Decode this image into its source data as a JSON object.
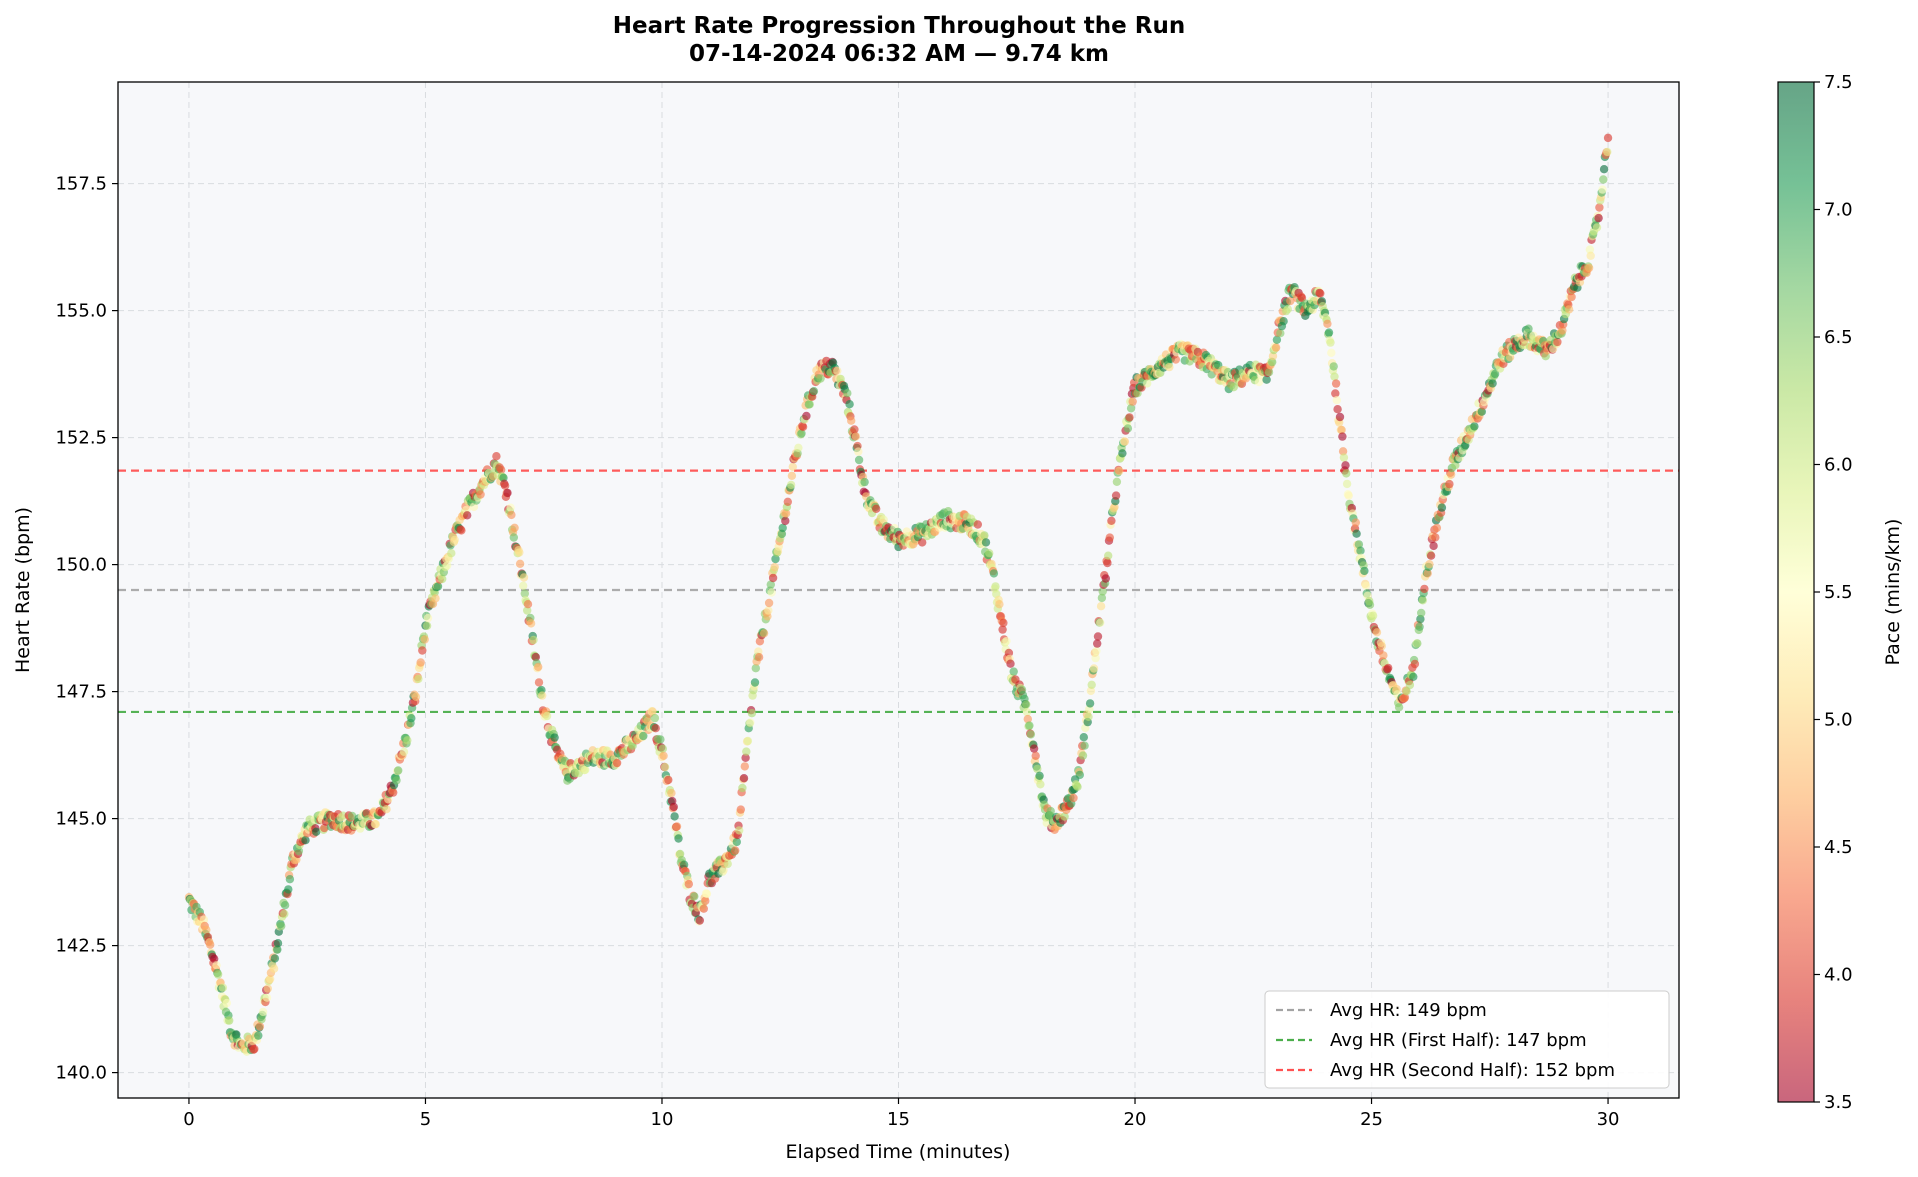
{
  "chart_data": {
    "type": "scatter",
    "title": "Heart Rate Progression Throughout the Run",
    "subtitle": "07-14-2024 06:32 AM — 9.74 km",
    "xlabel": "Elapsed Time (minutes)",
    "ylabel": "Heart Rate (bpm)",
    "xlim": [
      -1.5,
      31.5
    ],
    "ylim": [
      139.5,
      159.5
    ],
    "xticks": [
      0,
      5,
      10,
      15,
      20,
      25,
      30
    ],
    "xtick_labels": [
      "0",
      "5",
      "10",
      "15",
      "20",
      "25",
      "30"
    ],
    "yticks": [
      140.0,
      142.5,
      145.0,
      147.5,
      150.0,
      152.5,
      155.0,
      157.5
    ],
    "ytick_labels": [
      "140.0",
      "142.5",
      "145.0",
      "147.5",
      "150.0",
      "152.5",
      "155.0",
      "157.5"
    ],
    "grid": true,
    "legend_position": "lower-right",
    "colormap": "RdYlGn",
    "colorbar": {
      "label": "Pace (mins/km)",
      "range": [
        3.5,
        7.5
      ],
      "ticks": [
        3.5,
        4.0,
        4.5,
        5.0,
        5.5,
        6.0,
        6.5,
        7.0,
        7.5
      ],
      "tick_labels": [
        "3.5",
        "4.0",
        "4.5",
        "5.0",
        "5.5",
        "6.0",
        "6.5",
        "7.0",
        "7.5"
      ]
    },
    "reference_lines": [
      {
        "name": "Avg HR: 149 bpm",
        "y": 149.5,
        "color": "#999999"
      },
      {
        "name": "Avg HR (First Half): 147 bpm",
        "y": 147.1,
        "color": "#2ca02c"
      },
      {
        "name": "Avg HR (Second Half): 152 bpm",
        "y": 151.85,
        "color": "#ff3333"
      }
    ],
    "series": [
      {
        "trend": [
          [
            0.0,
            143.4
          ],
          [
            0.3,
            142.9
          ],
          [
            0.5,
            142.3
          ],
          [
            0.7,
            141.6
          ],
          [
            0.9,
            140.8
          ],
          [
            1.1,
            140.5
          ],
          [
            1.4,
            140.6
          ],
          [
            1.6,
            141.4
          ],
          [
            1.8,
            142.2
          ],
          [
            2.0,
            143.2
          ],
          [
            2.2,
            144.2
          ],
          [
            2.5,
            144.8
          ],
          [
            3.0,
            145.0
          ],
          [
            3.5,
            144.9
          ],
          [
            4.0,
            145.0
          ],
          [
            4.3,
            145.6
          ],
          [
            4.6,
            146.6
          ],
          [
            4.8,
            147.5
          ],
          [
            5.0,
            148.8
          ],
          [
            5.3,
            149.7
          ],
          [
            5.6,
            150.5
          ],
          [
            5.9,
            151.1
          ],
          [
            6.2,
            151.6
          ],
          [
            6.5,
            152.0
          ],
          [
            6.7,
            151.5
          ],
          [
            6.9,
            150.5
          ],
          [
            7.1,
            149.5
          ],
          [
            7.3,
            148.3
          ],
          [
            7.5,
            147.2
          ],
          [
            7.8,
            146.2
          ],
          [
            8.0,
            145.9
          ],
          [
            8.5,
            146.2
          ],
          [
            9.0,
            146.2
          ],
          [
            9.5,
            146.6
          ],
          [
            9.8,
            147.0
          ],
          [
            10.0,
            146.3
          ],
          [
            10.2,
            145.4
          ],
          [
            10.4,
            144.2
          ],
          [
            10.6,
            143.5
          ],
          [
            10.8,
            143.1
          ],
          [
            11.0,
            143.8
          ],
          [
            11.3,
            144.1
          ],
          [
            11.6,
            144.6
          ],
          [
            11.8,
            146.4
          ],
          [
            12.0,
            148.0
          ],
          [
            12.3,
            149.5
          ],
          [
            12.5,
            150.5
          ],
          [
            12.8,
            152.0
          ],
          [
            13.0,
            152.9
          ],
          [
            13.3,
            153.8
          ],
          [
            13.6,
            153.9
          ],
          [
            13.9,
            153.3
          ],
          [
            14.1,
            152.4
          ],
          [
            14.3,
            151.4
          ],
          [
            14.6,
            150.8
          ],
          [
            15.0,
            150.5
          ],
          [
            15.5,
            150.6
          ],
          [
            16.0,
            150.9
          ],
          [
            16.5,
            150.8
          ],
          [
            16.8,
            150.5
          ],
          [
            17.0,
            149.8
          ],
          [
            17.2,
            148.8
          ],
          [
            17.4,
            147.8
          ],
          [
            17.7,
            147.2
          ],
          [
            17.9,
            146.2
          ],
          [
            18.1,
            145.1
          ],
          [
            18.3,
            144.9
          ],
          [
            18.6,
            145.3
          ],
          [
            18.8,
            145.8
          ],
          [
            19.0,
            147.0
          ],
          [
            19.2,
            148.5
          ],
          [
            19.4,
            150.0
          ],
          [
            19.6,
            151.5
          ],
          [
            19.8,
            152.6
          ],
          [
            20.0,
            153.5
          ],
          [
            20.5,
            153.9
          ],
          [
            21.0,
            154.2
          ],
          [
            21.5,
            154.0
          ],
          [
            22.0,
            153.6
          ],
          [
            22.5,
            153.8
          ],
          [
            22.8,
            153.7
          ],
          [
            23.0,
            154.5
          ],
          [
            23.3,
            155.4
          ],
          [
            23.6,
            155.0
          ],
          [
            23.9,
            155.3
          ],
          [
            24.1,
            154.6
          ],
          [
            24.3,
            153.0
          ],
          [
            24.5,
            151.5
          ],
          [
            24.7,
            150.5
          ],
          [
            24.9,
            149.5
          ],
          [
            25.1,
            148.6
          ],
          [
            25.3,
            148.0
          ],
          [
            25.6,
            147.2
          ],
          [
            25.9,
            148.0
          ],
          [
            26.1,
            149.6
          ],
          [
            26.4,
            150.9
          ],
          [
            26.7,
            151.9
          ],
          [
            27.0,
            152.5
          ],
          [
            27.4,
            153.3
          ],
          [
            27.7,
            154.0
          ],
          [
            28.0,
            154.3
          ],
          [
            28.3,
            154.5
          ],
          [
            28.7,
            154.2
          ],
          [
            29.0,
            154.6
          ],
          [
            29.3,
            155.5
          ],
          [
            29.6,
            156.0
          ],
          [
            29.8,
            156.9
          ],
          [
            30.0,
            158.4
          ]
        ]
      }
    ]
  }
}
